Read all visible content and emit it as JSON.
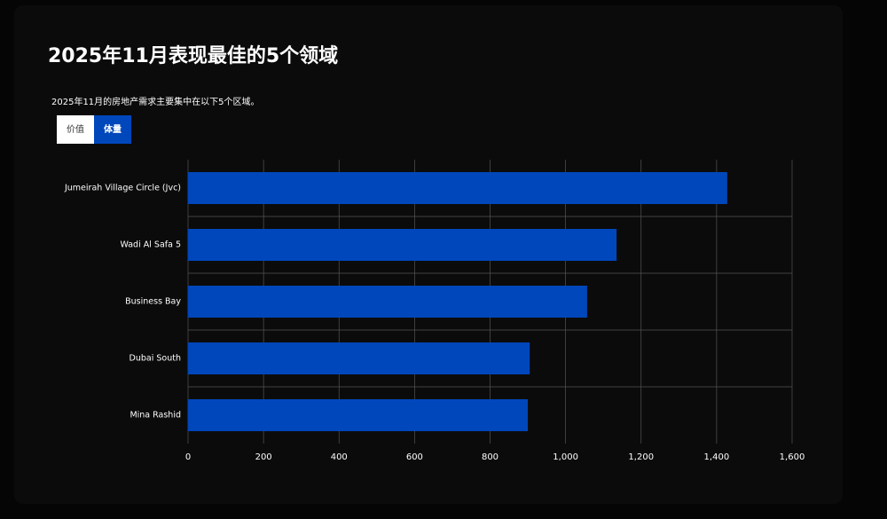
{
  "chart_data": {
    "type": "bar",
    "orientation": "horizontal",
    "title": "2025年11月表现最佳的5个领域",
    "subtitle": "2025年11月的房地产需求主要集中在以下5个区域。",
    "tabs": [
      "价值",
      "体量"
    ],
    "active_tab": 1,
    "categories": [
      "Jumeirah Village Circle (Jvc)",
      "Wadi Al Safa 5",
      "Business Bay",
      "Dubai South",
      "Mina Rashid"
    ],
    "values": [
      1428,
      1135,
      1057,
      905,
      900
    ],
    "color": "#0047bb",
    "xlim": [
      0,
      1600
    ],
    "xticks": [
      0,
      200,
      400,
      600,
      800,
      {
        "value": 1000,
        "label": "1,000"
      },
      {
        "value": 1200,
        "label": "1,200"
      },
      {
        "value": 1400,
        "label": "1,400"
      },
      {
        "value": 1600,
        "label": "1,600"
      }
    ],
    "grid": true
  }
}
